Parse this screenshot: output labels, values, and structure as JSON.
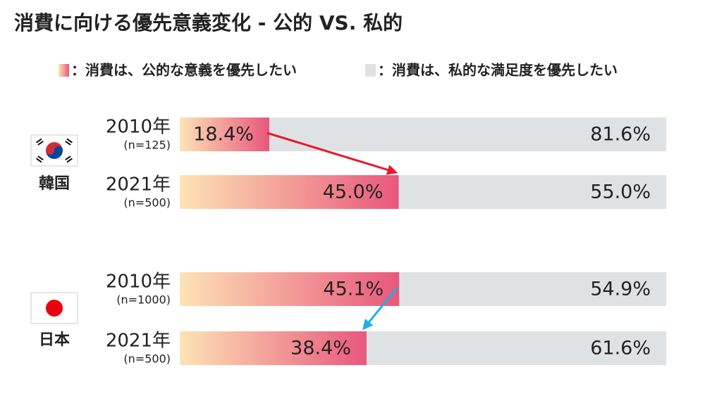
{
  "chart_data": {
    "type": "bar",
    "orientation": "horizontal",
    "stacked": true,
    "title": "消費に向ける優先意義変化 - 公的 VS. 私的",
    "groups": [
      "韓国",
      "日本"
    ],
    "categories": [
      "2010年",
      "2021年",
      "2010年",
      "2021年"
    ],
    "sample_sizes": [
      "(n=125)",
      "(n=500)",
      "(n=1000)",
      "(n=500)"
    ],
    "series": [
      {
        "name": "：消費は、公的な意義を優先したい",
        "color": "#e9577c",
        "gradient_from": "#fde3b5",
        "values": [
          18.4,
          45.0,
          45.1,
          38.4
        ],
        "value_labels": [
          "18.4%",
          "45.0%",
          "45.1%",
          "38.4%"
        ]
      },
      {
        "name": "：消費は、私的な満足度を優先したい",
        "color": "#dfe2e5",
        "values": [
          81.6,
          55.0,
          54.9,
          61.6
        ],
        "value_labels": [
          "81.6%",
          "55.0%",
          "54.9%",
          "61.6%"
        ]
      }
    ],
    "xlim": [
      0,
      100
    ]
  }
}
